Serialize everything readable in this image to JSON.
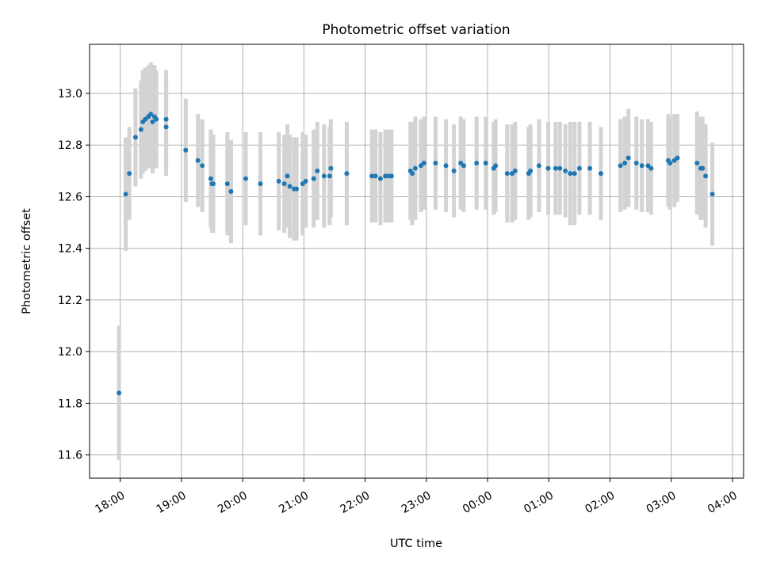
{
  "chart_data": {
    "type": "scatter",
    "title": "Photometric offset variation",
    "xlabel": "UTC time",
    "ylabel": "Photometric offset",
    "x_unit": "hours since 18:00 UTC",
    "xlim": [
      -0.5,
      10.18
    ],
    "ylim": [
      11.51,
      13.19
    ],
    "grid": true,
    "legend": "none",
    "x_ticks": [
      0,
      1,
      2,
      3,
      4,
      5,
      6,
      7,
      8,
      9,
      10
    ],
    "x_tick_labels": [
      "18:00",
      "19:00",
      "20:00",
      "21:00",
      "22:00",
      "23:00",
      "00:00",
      "01:00",
      "02:00",
      "03:00",
      "04:00"
    ],
    "y_ticks": [
      11.6,
      11.8,
      12.0,
      12.2,
      12.4,
      12.6,
      12.8,
      13.0
    ],
    "y_tick_labels": [
      "11.6",
      "11.8",
      "12.0",
      "12.2",
      "12.4",
      "12.6",
      "12.8",
      "13.0"
    ],
    "colors": {
      "marker": "#1f77b4",
      "errorbar": "#d3d3d3",
      "grid": "#b0b0b0"
    },
    "series": [
      {
        "x": [
          -0.02,
          0.09,
          0.15,
          0.25,
          0.34,
          0.37,
          0.41,
          0.46,
          0.5,
          0.53,
          0.56,
          0.59,
          0.75,
          0.75,
          1.07,
          1.27,
          1.34,
          1.48,
          1.52,
          1.5,
          1.75,
          1.81,
          2.05,
          2.29,
          2.59,
          2.68,
          2.73,
          2.77,
          2.84,
          2.88,
          2.98,
          3.03,
          3.16,
          3.22,
          3.33,
          3.42,
          3.44,
          3.7,
          4.11,
          4.17,
          4.25,
          4.33,
          4.39,
          4.43,
          4.74,
          4.77,
          4.82,
          4.91,
          4.96,
          5.15,
          5.32,
          5.45,
          5.56,
          5.61,
          5.82,
          5.97,
          6.1,
          6.13,
          6.32,
          6.4,
          6.45,
          6.67,
          6.7,
          6.84,
          6.99,
          7.11,
          7.18,
          7.27,
          7.35,
          7.42,
          7.5,
          7.67,
          7.85,
          8.17,
          8.24,
          8.3,
          8.43,
          8.52,
          8.62,
          8.67,
          8.95,
          8.98,
          9.05,
          9.1,
          9.42,
          9.48,
          9.51,
          9.56,
          9.67
        ],
        "y": [
          11.84,
          12.61,
          12.69,
          12.83,
          12.86,
          12.89,
          12.9,
          12.91,
          12.92,
          12.89,
          12.91,
          12.9,
          12.9,
          12.87,
          12.78,
          12.74,
          12.72,
          12.67,
          12.65,
          12.65,
          12.65,
          12.62,
          12.67,
          12.65,
          12.66,
          12.65,
          12.68,
          12.64,
          12.63,
          12.63,
          12.65,
          12.66,
          12.67,
          12.7,
          12.68,
          12.68,
          12.71,
          12.69,
          12.68,
          12.68,
          12.67,
          12.68,
          12.68,
          12.68,
          12.7,
          12.69,
          12.71,
          12.72,
          12.73,
          12.73,
          12.72,
          12.7,
          12.73,
          12.72,
          12.73,
          12.73,
          12.71,
          12.72,
          12.69,
          12.69,
          12.7,
          12.69,
          12.7,
          12.72,
          12.71,
          12.71,
          12.71,
          12.7,
          12.69,
          12.69,
          12.71,
          12.71,
          12.69,
          12.72,
          12.73,
          12.75,
          12.73,
          12.72,
          12.72,
          12.71,
          12.74,
          12.73,
          12.74,
          12.75,
          12.73,
          12.71,
          12.71,
          12.68,
          12.61
        ],
        "err": [
          0.26,
          0.22,
          0.18,
          0.19,
          0.19,
          0.2,
          0.2,
          0.2,
          0.2,
          0.2,
          0.2,
          0.19,
          0.19,
          0.19,
          0.2,
          0.18,
          0.18,
          0.19,
          0.19,
          0.19,
          0.2,
          0.2,
          0.18,
          0.2,
          0.19,
          0.19,
          0.2,
          0.2,
          0.2,
          0.2,
          0.2,
          0.18,
          0.19,
          0.19,
          0.2,
          0.19,
          0.19,
          0.2,
          0.18,
          0.18,
          0.18,
          0.18,
          0.18,
          0.18,
          0.19,
          0.2,
          0.2,
          0.18,
          0.18,
          0.18,
          0.18,
          0.18,
          0.18,
          0.18,
          0.18,
          0.18,
          0.18,
          0.18,
          0.19,
          0.19,
          0.19,
          0.18,
          0.18,
          0.18,
          0.18,
          0.18,
          0.18,
          0.18,
          0.2,
          0.2,
          0.18,
          0.18,
          0.18,
          0.18,
          0.18,
          0.19,
          0.18,
          0.18,
          0.18,
          0.18,
          0.18,
          0.18,
          0.18,
          0.17,
          0.2,
          0.2,
          0.2,
          0.2,
          0.2
        ]
      }
    ]
  }
}
